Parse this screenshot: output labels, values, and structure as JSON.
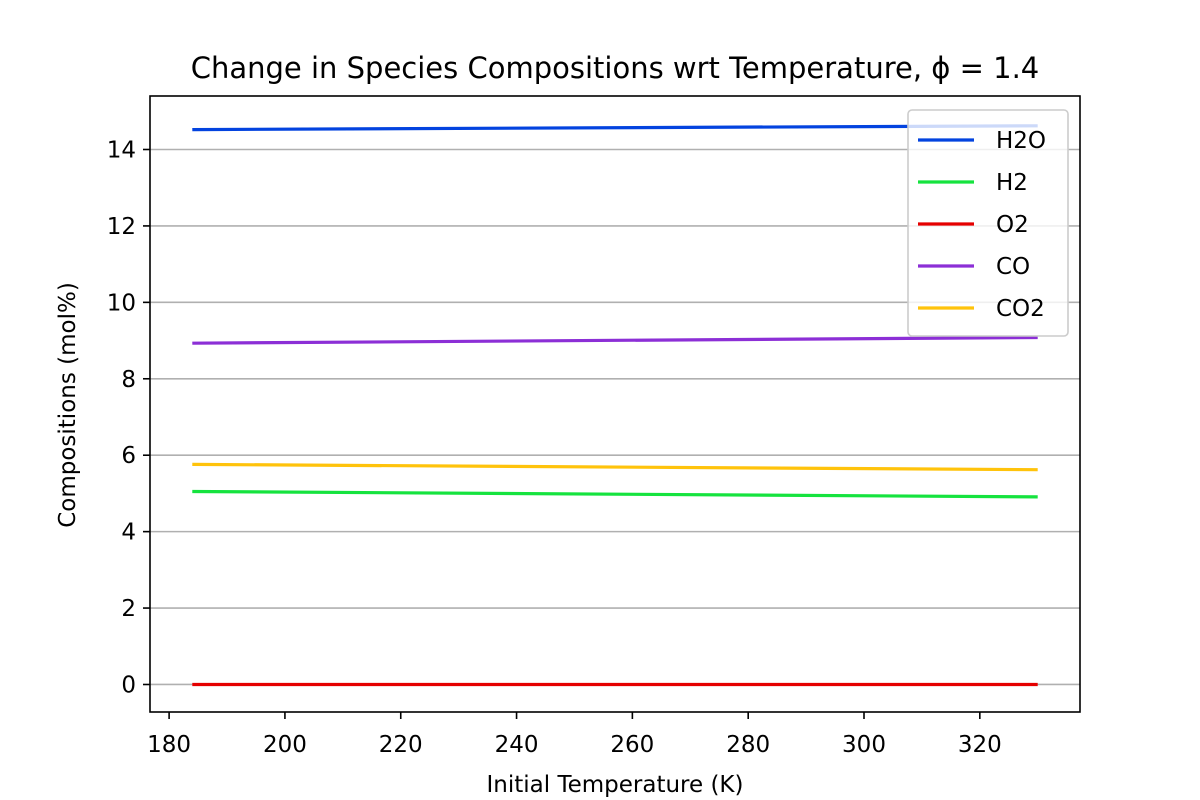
{
  "chart_data": {
    "type": "line",
    "title": "Change in Species Compositions wrt Temperature, ϕ = 1.4",
    "xlabel": "Initial Temperature (K)",
    "ylabel": "Compositions (mol%)",
    "xlim": [
      176.7,
      337.3
    ],
    "ylim": [
      -0.72,
      15.4
    ],
    "xticks": [
      "180",
      "200",
      "220",
      "240",
      "260",
      "280",
      "300",
      "320"
    ],
    "yticks": [
      "0",
      "2",
      "4",
      "6",
      "8",
      "10",
      "12",
      "14"
    ],
    "grid": "y-axis horizontal lines",
    "legend_position": "top-right",
    "x": [
      184,
      330
    ],
    "series": [
      {
        "name": "H2O",
        "color": "#0343df",
        "values": [
          14.52,
          14.62
        ]
      },
      {
        "name": "H2",
        "color": "#15e33e",
        "values": [
          5.05,
          4.91
        ]
      },
      {
        "name": "O2",
        "color": "#e50000",
        "values": [
          0.0,
          0.0
        ]
      },
      {
        "name": "CO",
        "color": "#8c2fd6",
        "values": [
          8.93,
          9.08
        ]
      },
      {
        "name": "CO2",
        "color": "#ffc30b",
        "values": [
          5.76,
          5.62
        ]
      }
    ]
  }
}
